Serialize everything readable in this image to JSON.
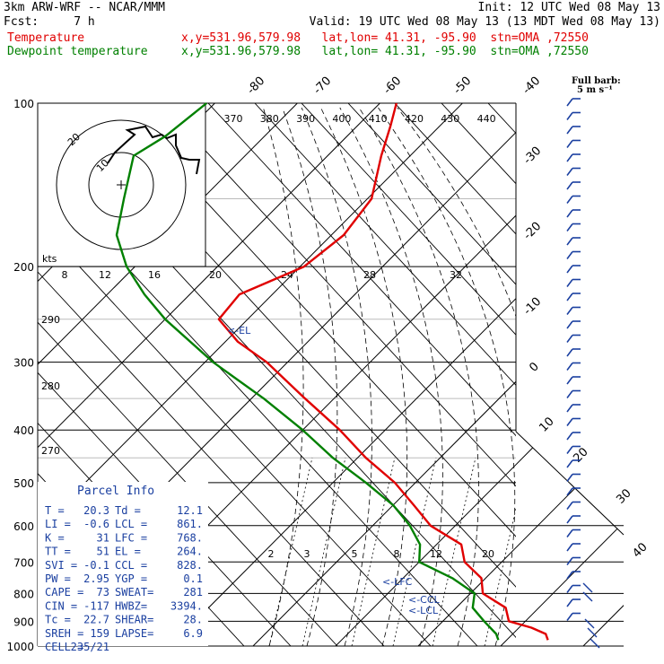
{
  "header": {
    "model": "3km ARW-WRF -- NCAR/MMM",
    "init": "Init: 12 UTC Wed 08 May 13",
    "fcst": "Fcst:     7 h",
    "valid": "Valid: 19 UTC Wed 08 May 13 (13 MDT Wed 08 May 13)",
    "temp_label": "Temperature",
    "temp_loc": "x,y=531.96,579.98   lat,lon= 41.31, -95.90  stn=OMA ,72550",
    "dew_label": "Dewpoint temperature",
    "dew_loc": "x,y=531.96,579.98   lat,lon= 41.31, -95.90  stn=OMA ,72550"
  },
  "colors": {
    "temperature": "#e00000",
    "dewpoint": "#008000",
    "text": "#1a3fa0",
    "grid": "#000000"
  },
  "legend": {
    "barb_title": "Full barb:",
    "barb_value": "5 m s⁻¹"
  },
  "hodograph": {
    "ring_labels": [
      "10",
      "20"
    ],
    "unit": "kts"
  },
  "theta_e_labels": [
    "370",
    "380",
    "390",
    "400",
    "410",
    "420",
    "430",
    "440"
  ],
  "wind_scale_labels": [
    "8",
    "12",
    "16",
    "20",
    "24",
    "28",
    "32"
  ],
  "theta_side_labels": [
    "290",
    "280",
    "270"
  ],
  "mixing_ratio_labels": [
    "2",
    "3",
    "5",
    "8",
    "12",
    "20"
  ],
  "markers": {
    "el": "<-EL",
    "lfc": "<-LFC",
    "ccl": "<-CCL",
    "lcl": "<-LCL"
  },
  "parcel": {
    "title": "Parcel Info",
    "rows": [
      [
        "T  =",
        "20.3",
        "Td =",
        "12.1"
      ],
      [
        "LI =",
        "-0.6",
        "LCL =",
        "861."
      ],
      [
        "K  =",
        "31",
        "LFC =",
        "768."
      ],
      [
        "TT =",
        "51",
        "EL =",
        "264."
      ],
      [
        "SVI =",
        "-0.1",
        "CCL =",
        "828."
      ],
      [
        "PW =",
        "2.95",
        "YGP =",
        "0.1"
      ],
      [
        "CAPE =",
        "73",
        "SWEAT=",
        "281"
      ],
      [
        "CIN =",
        "-117",
        "HWBZ=",
        "3394."
      ],
      [
        "Tc =",
        "22.7",
        "SHEAR=",
        "28."
      ],
      [
        "SREH =",
        "159",
        "LAPSE=",
        "6.9"
      ],
      [
        "CELL =",
        "235/21",
        "",
        ""
      ]
    ]
  },
  "chart_data": {
    "type": "line",
    "title": "",
    "xlabel": "",
    "ylabel": "",
    "y_scale": "log",
    "ylim": [
      1000,
      100
    ],
    "pressure_levels": [
      100,
      200,
      300,
      400,
      500,
      600,
      700,
      800,
      900,
      1000
    ],
    "isotherm_labels": [
      -80,
      -70,
      -60,
      -50,
      -40,
      -30,
      -20,
      -10,
      0,
      10,
      20,
      30,
      40
    ],
    "series": [
      {
        "name": "Temperature",
        "pressure": [
          100,
          110,
          125,
          150,
          175,
          200,
          225,
          250,
          275,
          300,
          350,
          400,
          450,
          500,
          550,
          600,
          650,
          700,
          750,
          800,
          850,
          900,
          925,
          950,
          975
        ],
        "values": [
          -58,
          -56,
          -53.5,
          -49.5,
          -48.5,
          -49.5,
          -54,
          -53.5,
          -48.5,
          -42.5,
          -33.5,
          -25.5,
          -19,
          -12.5,
          -7.5,
          -3,
          3,
          5.5,
          9.5,
          11.5,
          16,
          18,
          21.5,
          24,
          25
        ]
      },
      {
        "name": "Dewpoint temperature",
        "pressure": [
          100,
          115,
          125,
          150,
          175,
          200,
          225,
          250,
          300,
          350,
          400,
          450,
          500,
          550,
          600,
          650,
          700,
          750,
          800,
          850,
          900,
          950,
          975
        ],
        "values": [
          -81,
          -82,
          -83.5,
          -79.5,
          -76,
          -71,
          -65.5,
          -60,
          -49,
          -38.5,
          -30,
          -23,
          -16,
          -10,
          -5.5,
          -2,
          0,
          6,
          10.5,
          12,
          15,
          18,
          19
        ]
      }
    ]
  }
}
